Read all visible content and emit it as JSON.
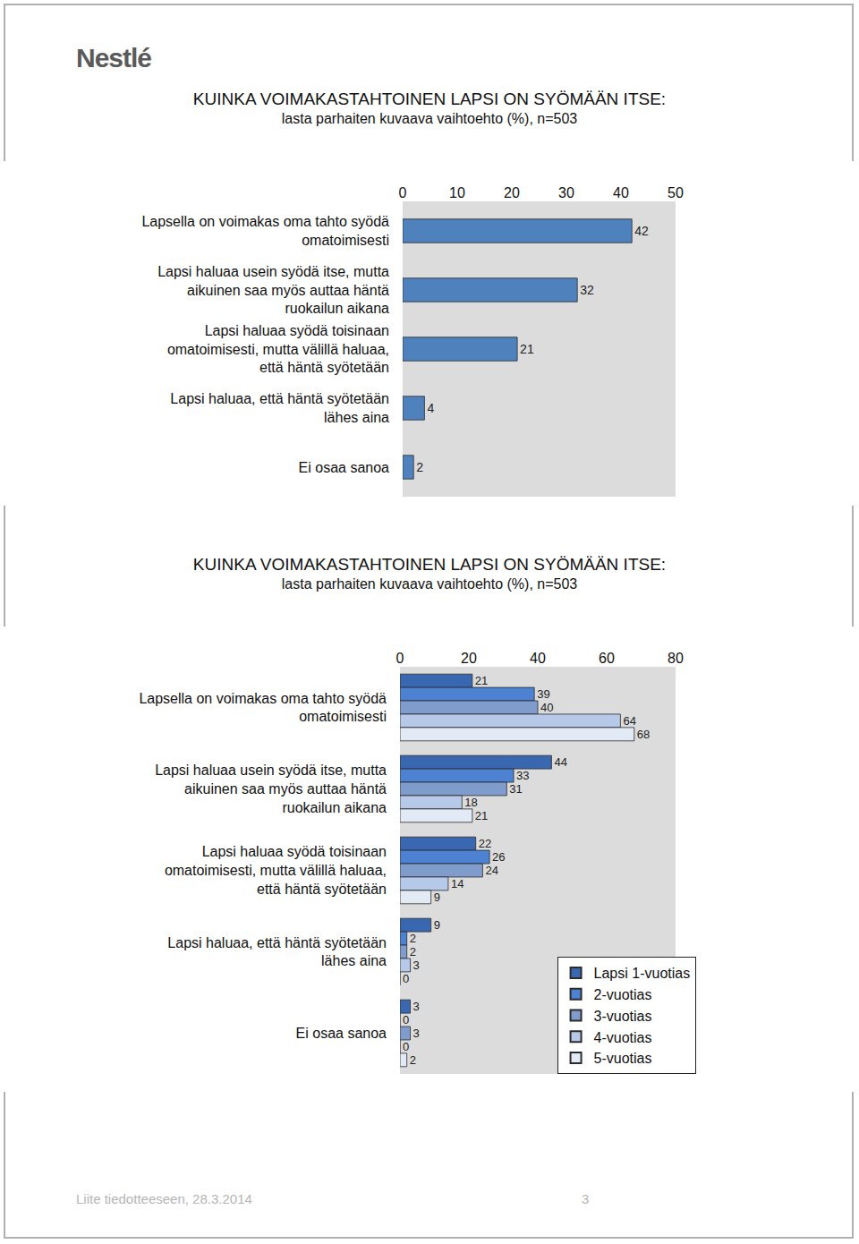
{
  "header": {
    "logo": "Nestlé"
  },
  "chart_data": [
    {
      "type": "bar",
      "title": "KUINKA VOIMAKASTAHTOINEN LAPSI ON SYÖMÄÄN ITSE:",
      "subtitle": "lasta parhaiten kuvaava vaihtoehto (%), n=503",
      "orientation": "horizontal",
      "categories": [
        "Lapsella on voimakas oma tahto syödä omatoimisesti",
        "Lapsi haluaa usein syödä itse, mutta aikuinen saa myös auttaa häntä ruokailun aikana",
        "Lapsi haluaa syödä toisinaan omatoimisesti, mutta välillä haluaa, että häntä syötetään",
        "Lapsi haluaa, että häntä syötetään lähes aina",
        "Ei osaa sanoa"
      ],
      "values": [
        42,
        32,
        21,
        4,
        2
      ],
      "color": "#4f81bd",
      "xlim": [
        0,
        50
      ],
      "xticks": [
        0,
        10,
        20,
        30,
        40,
        50
      ],
      "grid": false,
      "data_labels": true
    },
    {
      "type": "bar",
      "title": "KUINKA VOIMAKASTAHTOINEN LAPSI ON SYÖMÄÄN ITSE:",
      "subtitle": "lasta parhaiten kuvaava vaihtoehto (%), n=503",
      "orientation": "horizontal",
      "categories": [
        "Lapsella on voimakas oma tahto syödä omatoimisesti",
        "Lapsi haluaa usein syödä itse, mutta aikuinen saa myös auttaa häntä ruokailun aikana",
        "Lapsi haluaa syödä toisinaan omatoimisesti, mutta välillä haluaa, että häntä syötetään",
        "Lapsi haluaa, että häntä syötetään lähes aina",
        "Ei osaa sanoa"
      ],
      "series": [
        {
          "name": "Lapsi 1-vuotias",
          "color": "#3a68b0",
          "values": [
            21,
            44,
            22,
            9,
            3
          ]
        },
        {
          "name": "2-vuotias",
          "color": "#4d82d2",
          "values": [
            39,
            33,
            26,
            2,
            0
          ]
        },
        {
          "name": "3-vuotias",
          "color": "#7f9ccc",
          "values": [
            40,
            31,
            24,
            2,
            3
          ]
        },
        {
          "name": "4-vuotias",
          "color": "#b6c9e8",
          "values": [
            64,
            18,
            14,
            3,
            0
          ]
        },
        {
          "name": "5-vuotias",
          "color": "#e2eaf6",
          "values": [
            68,
            21,
            9,
            0,
            2
          ]
        }
      ],
      "xlim": [
        0,
        80
      ],
      "xticks": [
        0,
        20,
        40,
        60,
        80
      ],
      "grid": false,
      "data_labels": true,
      "legend": "lower right"
    }
  ],
  "footer": {
    "text": "Liite tiedotteeseen, 28.3.2014",
    "page": 3
  }
}
